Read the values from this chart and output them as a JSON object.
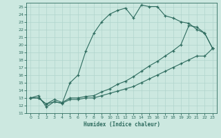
{
  "xlabel": "Humidex (Indice chaleur)",
  "background_color": "#cce8e0",
  "line_color": "#2d6b5e",
  "grid_color": "#b0d4cc",
  "xlim": [
    -0.5,
    23.5
  ],
  "ylim": [
    11,
    25.5
  ],
  "xticks": [
    0,
    1,
    2,
    3,
    4,
    5,
    6,
    7,
    8,
    9,
    10,
    11,
    12,
    13,
    14,
    15,
    16,
    17,
    18,
    19,
    20,
    21,
    22,
    23
  ],
  "yticks": [
    11,
    12,
    13,
    14,
    15,
    16,
    17,
    18,
    19,
    20,
    21,
    22,
    23,
    24,
    25
  ],
  "series": [
    {
      "x": [
        0,
        1,
        2,
        3,
        4,
        5,
        6,
        7,
        8,
        9,
        10,
        11,
        12,
        13,
        14,
        15,
        16,
        17,
        18,
        19,
        20,
        21,
        22,
        23
      ],
      "y": [
        13,
        13.3,
        11.8,
        12.5,
        12.3,
        15,
        16,
        19.2,
        21.5,
        23,
        24,
        24.5,
        24.8,
        23.5,
        25.2,
        25,
        25,
        23.8,
        23.5,
        23,
        22.8,
        22,
        21.5,
        19.5
      ]
    },
    {
      "x": [
        0,
        1,
        2,
        3,
        4,
        5,
        6,
        7,
        8,
        9,
        10,
        11,
        12,
        13,
        14,
        15,
        16,
        17,
        18,
        19,
        20,
        21,
        22,
        23
      ],
      "y": [
        13,
        13,
        12.2,
        12.8,
        12.4,
        13,
        13,
        13.2,
        13.3,
        13.8,
        14.2,
        14.8,
        15.2,
        15.8,
        16.5,
        17.2,
        17.8,
        18.5,
        19.2,
        20,
        22.5,
        22.3,
        21.5,
        19.5
      ]
    },
    {
      "x": [
        0,
        1,
        2,
        3,
        4,
        5,
        6,
        7,
        8,
        9,
        10,
        11,
        12,
        13,
        14,
        15,
        16,
        17,
        18,
        19,
        20,
        21,
        22,
        23
      ],
      "y": [
        13,
        13,
        12.2,
        12.5,
        12.3,
        12.8,
        12.8,
        13,
        13,
        13.3,
        13.6,
        13.9,
        14.2,
        14.5,
        15,
        15.5,
        16,
        16.5,
        17,
        17.5,
        18,
        18.5,
        18.5,
        19.5
      ]
    }
  ]
}
